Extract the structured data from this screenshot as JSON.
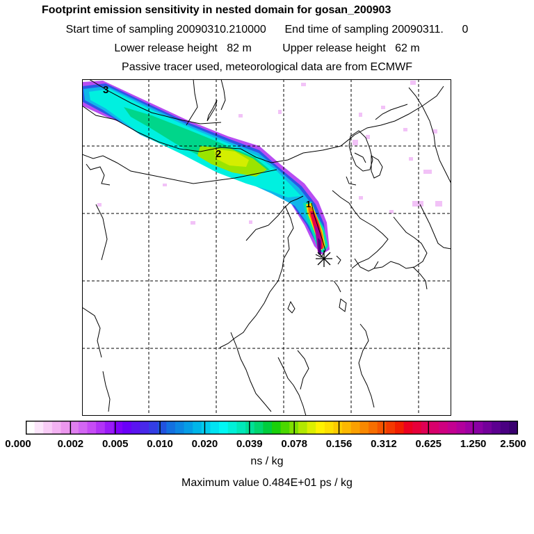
{
  "title": "Footprint emission sensitivity in nested domain for gosan_200903",
  "line1": "Start time of sampling 20090310.210000      End time of sampling 20090311.      0",
  "line2": "Lower release height   82 m          Upper release height   62 m",
  "line3": "Passive tracer used, meteorological data are from ECMWF",
  "plume_labels": [
    "3",
    "2",
    "1"
  ],
  "colorbar": {
    "colors": [
      "#ffffff",
      "#fce6fb",
      "#f8ccf6",
      "#f3b2f2",
      "#ec97ee",
      "#e07ff0",
      "#d366f3",
      "#c64cf5",
      "#b233f6",
      "#9a1af8",
      "#7f00fa",
      "#6a00f8",
      "#5a14f0",
      "#4828ea",
      "#343de4",
      "#2152de",
      "#1370e0",
      "#0c86e3",
      "#059de6",
      "#00b6e9",
      "#00ccee",
      "#00e3f2",
      "#00f8f5",
      "#00f0d8",
      "#00e8ba",
      "#00df97",
      "#00d66f",
      "#00cd3d",
      "#19d00a",
      "#4bd800",
      "#7fe000",
      "#b2e800",
      "#dcef00",
      "#fff200",
      "#fee000",
      "#fdcc00",
      "#fcb800",
      "#fba000",
      "#f98800",
      "#f76e00",
      "#f55400",
      "#f33900",
      "#f11e00",
      "#ec0020",
      "#e6003a",
      "#df0054",
      "#d8006c",
      "#cf0080",
      "#c30090",
      "#b2009c",
      "#9f00a3",
      "#8a00a3",
      "#73009a",
      "#5c0090",
      "#4a0082",
      "#3a0070"
    ],
    "ticks": [
      "0.000",
      "0.002",
      "0.005",
      "0.010",
      "0.020",
      "0.039",
      "0.078",
      "0.156",
      "0.312",
      "0.625",
      "1.250",
      "2.500"
    ]
  },
  "unit": "ns / kg",
  "max_value": "Maximum value  0.484E+01 ps / kg",
  "receptor_marker": "star-marker"
}
